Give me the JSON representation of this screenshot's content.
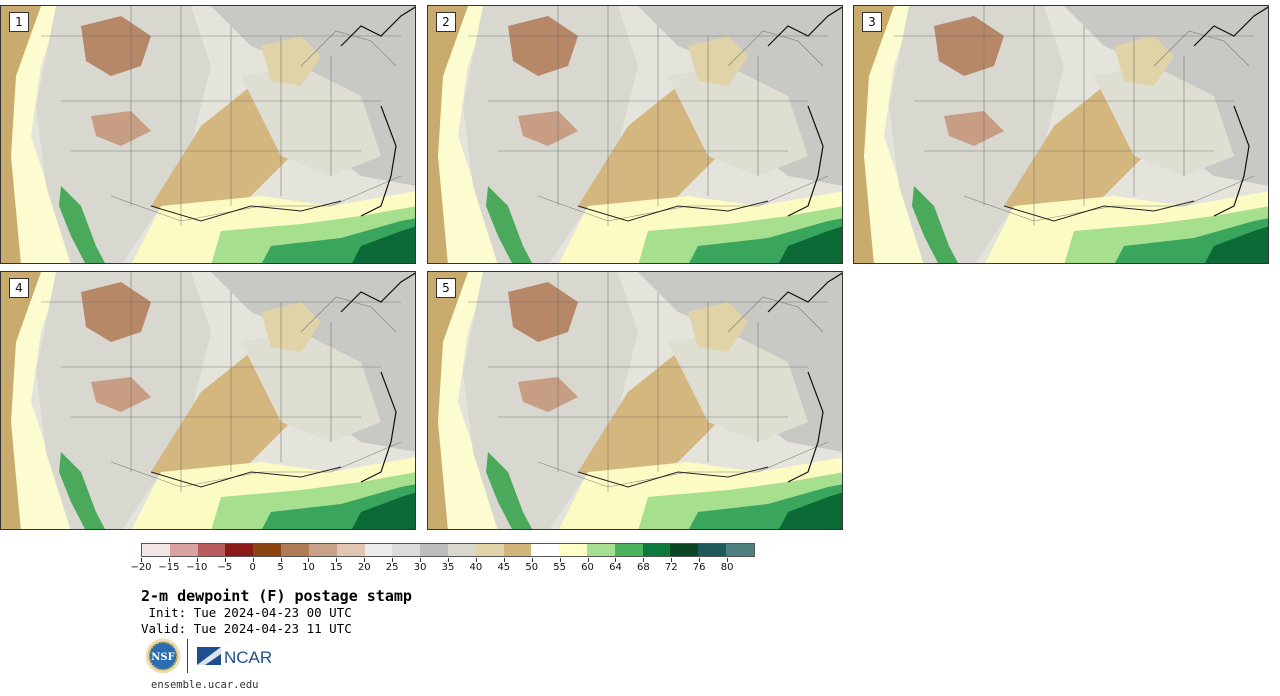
{
  "panels": [
    {
      "label": "1"
    },
    {
      "label": "2"
    },
    {
      "label": "3"
    },
    {
      "label": "4"
    },
    {
      "label": "5"
    }
  ],
  "colorbar": {
    "colors": [
      "#f2e6e6",
      "#d9a2a2",
      "#b85c5c",
      "#8b1a1a",
      "#8b4513",
      "#b07a55",
      "#c9a088",
      "#e0c6b3",
      "#ebebeb",
      "#dcdcdc",
      "#bdbdbd",
      "#d9d8cc",
      "#e0d3a8",
      "#d1b57a",
      "#ffffff",
      "#ffffc8",
      "#a6df8e",
      "#4bb35e",
      "#0c7a3c",
      "#0a4526",
      "#1f5a5a",
      "#4f7f7f"
    ],
    "tick_labels": [
      "−20",
      "−15",
      "−10",
      "−5",
      "0",
      "5",
      "10",
      "15",
      "20",
      "25",
      "30",
      "35",
      "40",
      "45",
      "50",
      "55",
      "60",
      "64",
      "68",
      "72",
      "76",
      "80"
    ]
  },
  "title": "2-m dewpoint (F) postage stamp",
  "init_line": " Init: Tue 2024-04-23 00 UTC",
  "valid_line": "Valid: Tue 2024-04-23 11 UTC",
  "logos": {
    "nsf_text": "NSF",
    "ncar_text": "NCAR"
  },
  "footer_url": "ensemble.ucar.edu"
}
